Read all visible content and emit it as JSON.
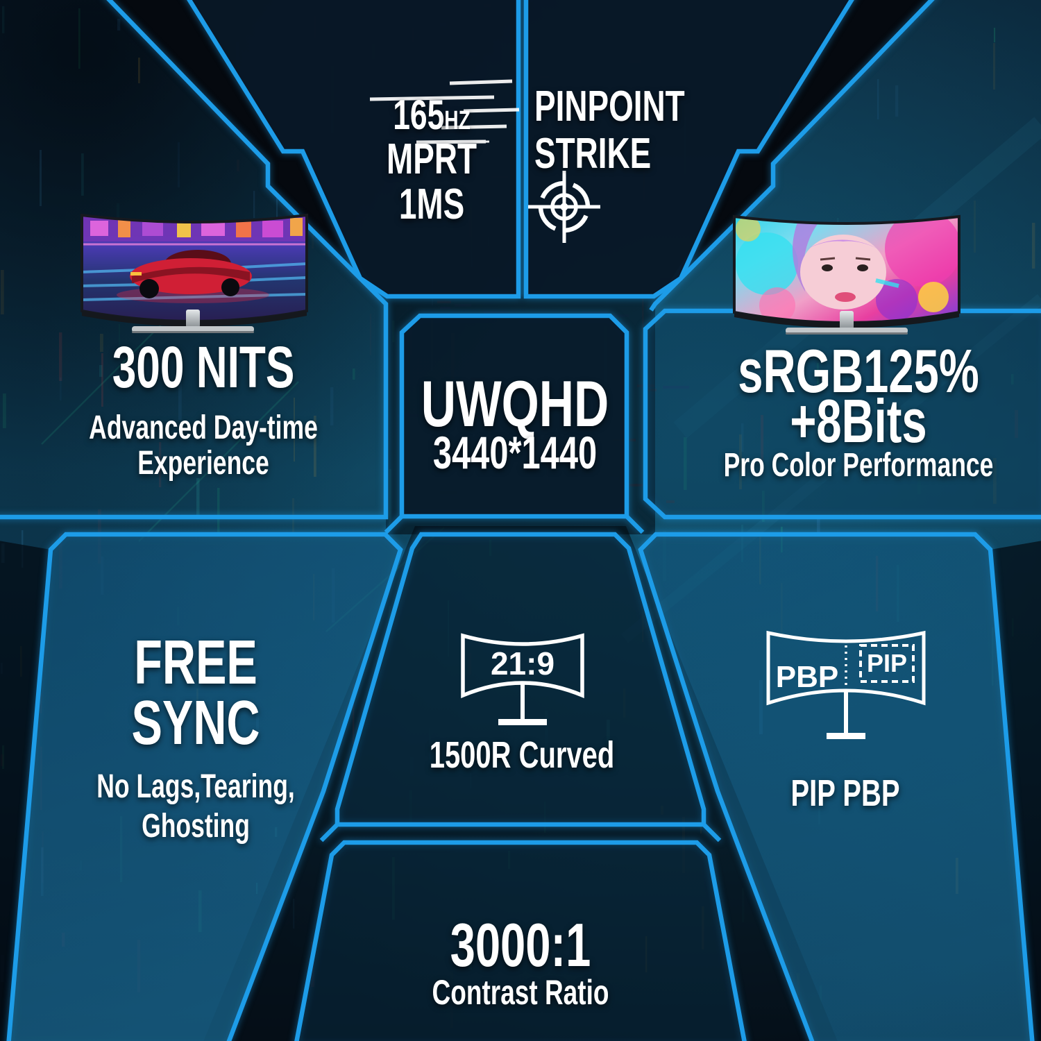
{
  "colors": {
    "accent_blue": "#1d9ce8",
    "text_white": "#ffffff"
  },
  "sections": {
    "refresh": {
      "value": "165",
      "unit": "HZ",
      "line2": "MPRT",
      "line3": "1MS"
    },
    "pinpoint": {
      "line1": "PINPOINT",
      "line2": "STRIKE",
      "icon": "crosshair-target-icon"
    },
    "brightness": {
      "title": "300 NITS",
      "subtitle_line1": "Advanced Day-time",
      "subtitle_line2": "Experience"
    },
    "resolution": {
      "title": "UWQHD",
      "subtitle": "3440*1440"
    },
    "color_gamut": {
      "title_line1": "sRGB125%",
      "title_line2": "+8Bits",
      "subtitle": "Pro Color Performance"
    },
    "freesync": {
      "title_line1": "FREE",
      "title_line2": "SYNC",
      "subtitle_line1": "No Lags,Tearing,",
      "subtitle_line2": "Ghosting"
    },
    "curvature": {
      "screen_label": "21:9",
      "caption": "1500R Curved",
      "icon": "curved-monitor-icon"
    },
    "multiview": {
      "label_pbp": "PBP",
      "label_pip": "PIP",
      "caption": "PIP PBP",
      "icon": "pip-pbp-monitor-icon"
    },
    "contrast": {
      "title": "3000:1",
      "subtitle": "Contrast Ratio"
    }
  }
}
